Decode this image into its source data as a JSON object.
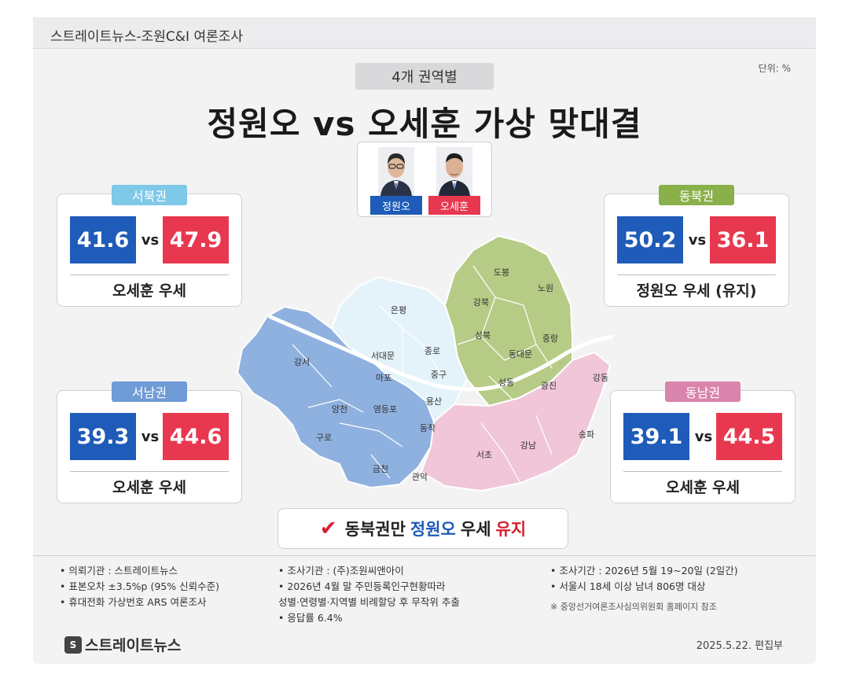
{
  "header": {
    "source": "스트레이트뉴스-조원C&I 여론조사"
  },
  "subtitle": "4개 권역별",
  "unit": "단위: %",
  "title": "정원오 vs 오세훈 가상 맞대결",
  "candidates": [
    {
      "name": "정원오",
      "color": "#1f5bb8"
    },
    {
      "name": "오세훈",
      "color": "#e8384f"
    }
  ],
  "vs_label": "vs",
  "regions": [
    {
      "name": "서북권",
      "tag_color": "#7ec8e8",
      "jung": "41.6",
      "oh": "47.9",
      "verdict": "오세훈 우세"
    },
    {
      "name": "동북권",
      "tag_color": "#8ab04a",
      "jung": "50.2",
      "oh": "36.1",
      "verdict": "정원오 우세 (유지)"
    },
    {
      "name": "서남권",
      "tag_color": "#6f9bd6",
      "jung": "39.3",
      "oh": "44.6",
      "verdict": "오세훈 우세"
    },
    {
      "name": "동남권",
      "tag_color": "#d984ad",
      "jung": "39.1",
      "oh": "44.5",
      "verdict": "오세훈 우세"
    }
  ],
  "chart_data": {
    "type": "bar",
    "title": "정원오 vs 오세훈 가상 맞대결",
    "subtitle": "4개 권역별",
    "unit": "%",
    "categories": [
      "서북권",
      "동북권",
      "서남권",
      "동남권"
    ],
    "series": [
      {
        "name": "정원오",
        "values": [
          41.6,
          50.2,
          39.3,
          39.1
        ]
      },
      {
        "name": "오세훈",
        "values": [
          47.9,
          36.1,
          44.6,
          44.5
        ]
      }
    ]
  },
  "map": {
    "districts": {
      "northwest": [
        "은평",
        "서대문",
        "마포",
        "종로",
        "중구",
        "용산"
      ],
      "northeast": [
        "도봉",
        "노원",
        "강북",
        "성북",
        "중랑",
        "동대문",
        "성동",
        "광진"
      ],
      "southwest": [
        "강서",
        "양천",
        "영등포",
        "구로",
        "동작",
        "금천",
        "관악"
      ],
      "southeast": [
        "강동",
        "서초",
        "강남",
        "송파"
      ]
    },
    "colors": {
      "northwest": "#e4f3fa",
      "northeast": "#b6cc86",
      "southwest": "#8fb1df",
      "southeast": "#f0c6d8",
      "river": "#ffffff"
    }
  },
  "result": {
    "check_icon": "check-icon",
    "part1": "동북권만",
    "part2": "정원오",
    "part3": "우세",
    "part4": "유지"
  },
  "footer": {
    "col1": [
      "• 의뢰기관 : 스트레이트뉴스",
      "• 표본오차 ±3.5%p (95% 신뢰수준)",
      "• 휴대전화 가상번호 ARS 여론조사"
    ],
    "col2": [
      "• 조사기관 : (주)조원씨앤아이",
      "• 2026년 4월 말 주민등록인구현황따라",
      "   성별·연령별·지역별 비례할당 후 무작위 추출",
      "• 응답률 6.4%"
    ],
    "col3": [
      "• 조사기간 : 2026년 5월 19~20일 (2일간)",
      "• 서울시 18세 이상 남녀 806명 대상"
    ],
    "note": "※ 중앙선거여론조사심의위원회 홈페이지 참조"
  },
  "logo": {
    "text": "스트레이트뉴스"
  },
  "date": "2025.5.22. 편집부"
}
